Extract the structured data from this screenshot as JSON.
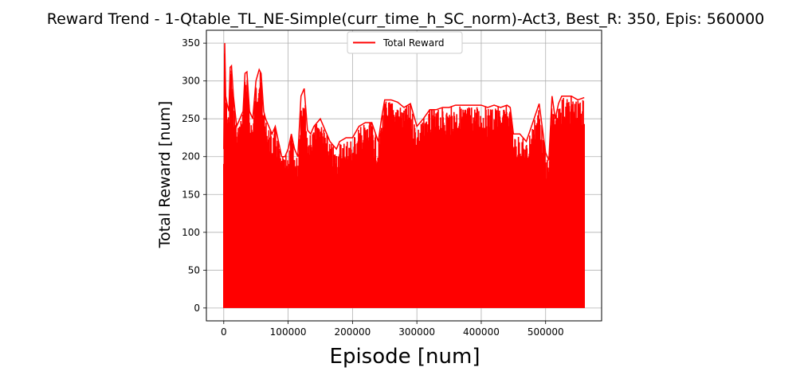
{
  "chart_data": {
    "type": "line",
    "title": "Reward Trend - 1-Qtable_TL_NE-Simple(curr_time_h_SC_norm)-Act3, Best_R: 350, Epis: 560000",
    "xlabel": "Episode [num]",
    "ylabel": "Total Reward [num]",
    "xlim": [
      -27000,
      587000
    ],
    "ylim": [
      -17,
      367
    ],
    "xticks": [
      0,
      100000,
      200000,
      300000,
      400000,
      500000
    ],
    "yticks": [
      0,
      50,
      100,
      150,
      200,
      250,
      300,
      350
    ],
    "grid": true,
    "legend": "upper center",
    "series": [
      {
        "name": "Total Reward",
        "color": "#ff0000",
        "description": "Reward per episode oscillating rapidly between 0 and an upper envelope",
        "upper_envelope": {
          "x": [
            0,
            1500,
            3000,
            5000,
            8000,
            10000,
            12000,
            15000,
            20000,
            25000,
            30000,
            33000,
            36000,
            40000,
            45000,
            50000,
            55000,
            58000,
            62000,
            65000,
            70000,
            75000,
            80000,
            85000,
            90000,
            95000,
            100000,
            105000,
            110000,
            115000,
            120000,
            125000,
            130000,
            135000,
            140000,
            150000,
            160000,
            165000,
            170000,
            175000,
            180000,
            190000,
            200000,
            210000,
            220000,
            230000,
            240000,
            245000,
            250000,
            260000,
            270000,
            280000,
            290000,
            300000,
            310000,
            320000,
            330000,
            340000,
            350000,
            360000,
            370000,
            380000,
            390000,
            400000,
            410000,
            420000,
            430000,
            440000,
            445000,
            450000,
            460000,
            470000,
            480000,
            490000,
            500000,
            505000,
            510000,
            515000,
            520000,
            525000,
            530000,
            540000,
            550000,
            560000
          ],
          "y": [
            210,
            350,
            280,
            270,
            260,
            318,
            320,
            280,
            240,
            250,
            260,
            310,
            312,
            260,
            250,
            300,
            315,
            310,
            260,
            250,
            240,
            230,
            240,
            220,
            200,
            200,
            210,
            230,
            210,
            200,
            280,
            290,
            235,
            230,
            240,
            250,
            230,
            220,
            215,
            210,
            220,
            225,
            225,
            240,
            245,
            245,
            220,
            250,
            275,
            275,
            272,
            265,
            270,
            240,
            250,
            262,
            262,
            265,
            265,
            268,
            268,
            268,
            268,
            268,
            265,
            268,
            265,
            268,
            265,
            230,
            230,
            220,
            245,
            270,
            205,
            195,
            280,
            250,
            270,
            280,
            280,
            280,
            275,
            278
          ]
        }
      }
    ]
  }
}
